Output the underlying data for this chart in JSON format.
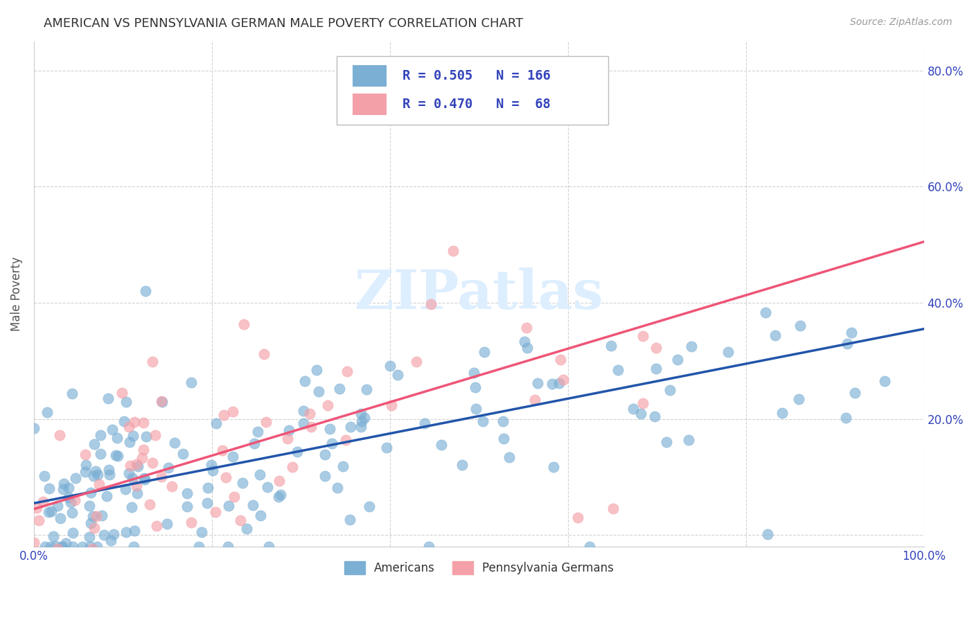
{
  "title": "AMERICAN VS PENNSYLVANIA GERMAN MALE POVERTY CORRELATION CHART",
  "source": "Source: ZipAtlas.com",
  "ylabel": "Male Poverty",
  "xlim": [
    0,
    1.0
  ],
  "ylim": [
    -0.02,
    0.85
  ],
  "xticks": [
    0.0,
    0.2,
    0.4,
    0.6,
    0.8,
    1.0
  ],
  "xticklabels": [
    "0.0%",
    "",
    "",
    "",
    "",
    "100.0%"
  ],
  "ytick_positions": [
    0.0,
    0.2,
    0.4,
    0.6,
    0.8
  ],
  "right_yticklabels": [
    "",
    "20.0%",
    "40.0%",
    "60.0%",
    "80.0%"
  ],
  "americans_R": 0.505,
  "americans_N": 166,
  "pa_german_R": 0.47,
  "pa_german_N": 68,
  "blue_scatter_color": "#7BAFD4",
  "pink_scatter_color": "#F4A0A8",
  "blue_line_color": "#2255AA",
  "pink_line_color": "#EE5577",
  "legend_text_color": "#3344BB",
  "title_color": "#333333",
  "watermark": "ZIPatlas",
  "watermark_color": "#DDEEFF",
  "grid_color": "#CCCCCC",
  "background_color": "#FFFFFF",
  "legend_label_americans": "Americans",
  "legend_label_pa_german": "Pennsylvania Germans",
  "blue_line_start_y": 0.055,
  "blue_line_end_y": 0.355,
  "pink_line_start_y": 0.045,
  "pink_line_end_y": 0.505
}
